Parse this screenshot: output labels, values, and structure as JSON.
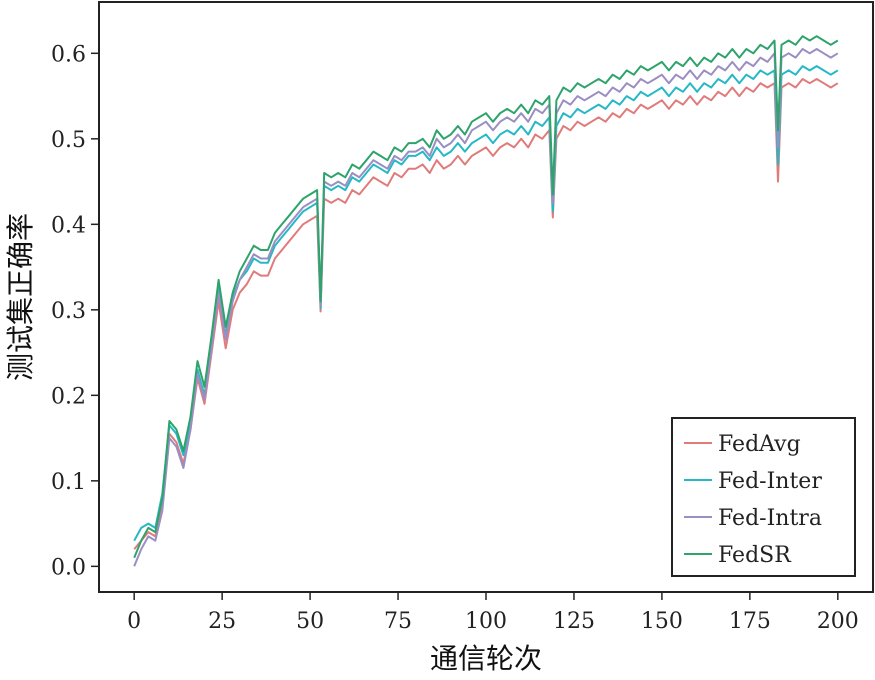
{
  "chart_data": {
    "type": "line",
    "title": "",
    "xlabel": "通信轮次",
    "ylabel": "测试集正确率",
    "xlim": [
      -10,
      210
    ],
    "ylim": [
      -0.03,
      0.66
    ],
    "xticks": [
      0,
      25,
      50,
      75,
      100,
      125,
      150,
      175,
      200
    ],
    "yticks": [
      0.0,
      0.1,
      0.2,
      0.3,
      0.4,
      0.5,
      0.6
    ],
    "xtick_labels": [
      "0",
      "25",
      "50",
      "75",
      "100",
      "125",
      "150",
      "175",
      "200"
    ],
    "ytick_labels": [
      "0.0",
      "0.1",
      "0.2",
      "0.3",
      "0.4",
      "0.5",
      "0.6"
    ],
    "grid": false,
    "legend": {
      "position": "bottom-right",
      "entries": [
        "FedAvg",
        "Fed-Inter",
        "Fed-Intra",
        "FedSR"
      ]
    },
    "x": [
      0,
      2,
      4,
      6,
      8,
      10,
      12,
      14,
      16,
      18,
      20,
      22,
      24,
      26,
      28,
      30,
      32,
      34,
      36,
      38,
      40,
      42,
      44,
      46,
      48,
      50,
      52,
      53,
      54,
      56,
      58,
      60,
      62,
      64,
      66,
      68,
      70,
      72,
      74,
      76,
      78,
      80,
      82,
      84,
      86,
      88,
      90,
      92,
      94,
      96,
      98,
      100,
      102,
      104,
      106,
      108,
      110,
      112,
      114,
      116,
      118,
      119,
      120,
      122,
      124,
      126,
      128,
      130,
      132,
      134,
      136,
      138,
      140,
      142,
      144,
      146,
      148,
      150,
      152,
      154,
      156,
      158,
      160,
      162,
      164,
      166,
      168,
      170,
      172,
      174,
      176,
      178,
      180,
      182,
      183,
      184,
      186,
      188,
      190,
      192,
      194,
      196,
      198,
      200
    ],
    "series": [
      {
        "name": "FedAvg",
        "color": "#e07b7b",
        "values": [
          0.02,
          0.03,
          0.04,
          0.035,
          0.075,
          0.155,
          0.145,
          0.12,
          0.16,
          0.22,
          0.19,
          0.25,
          0.31,
          0.255,
          0.3,
          0.32,
          0.33,
          0.345,
          0.34,
          0.34,
          0.36,
          0.37,
          0.38,
          0.39,
          0.4,
          0.405,
          0.41,
          0.298,
          0.43,
          0.425,
          0.43,
          0.425,
          0.44,
          0.435,
          0.445,
          0.455,
          0.45,
          0.445,
          0.46,
          0.455,
          0.465,
          0.465,
          0.47,
          0.46,
          0.475,
          0.465,
          0.47,
          0.48,
          0.47,
          0.48,
          0.485,
          0.49,
          0.48,
          0.49,
          0.495,
          0.49,
          0.5,
          0.49,
          0.505,
          0.5,
          0.51,
          0.408,
          0.5,
          0.515,
          0.51,
          0.52,
          0.515,
          0.52,
          0.525,
          0.52,
          0.53,
          0.525,
          0.535,
          0.53,
          0.54,
          0.535,
          0.54,
          0.545,
          0.535,
          0.545,
          0.54,
          0.55,
          0.54,
          0.55,
          0.545,
          0.555,
          0.55,
          0.56,
          0.55,
          0.56,
          0.555,
          0.565,
          0.56,
          0.565,
          0.45,
          0.56,
          0.565,
          0.56,
          0.57,
          0.565,
          0.57,
          0.565,
          0.56,
          0.565
        ]
      },
      {
        "name": "Fed-Inter",
        "color": "#26b8c6",
        "values": [
          0.03,
          0.045,
          0.05,
          0.045,
          0.085,
          0.165,
          0.155,
          0.13,
          0.17,
          0.23,
          0.2,
          0.26,
          0.325,
          0.27,
          0.315,
          0.335,
          0.345,
          0.36,
          0.355,
          0.355,
          0.375,
          0.385,
          0.395,
          0.405,
          0.415,
          0.42,
          0.425,
          0.302,
          0.445,
          0.44,
          0.445,
          0.44,
          0.455,
          0.45,
          0.46,
          0.47,
          0.465,
          0.46,
          0.475,
          0.47,
          0.48,
          0.48,
          0.485,
          0.475,
          0.49,
          0.48,
          0.485,
          0.495,
          0.485,
          0.495,
          0.5,
          0.505,
          0.495,
          0.505,
          0.51,
          0.505,
          0.515,
          0.505,
          0.52,
          0.515,
          0.525,
          0.415,
          0.515,
          0.53,
          0.525,
          0.535,
          0.53,
          0.535,
          0.54,
          0.535,
          0.545,
          0.54,
          0.55,
          0.545,
          0.555,
          0.55,
          0.555,
          0.56,
          0.55,
          0.56,
          0.555,
          0.565,
          0.555,
          0.565,
          0.56,
          0.57,
          0.565,
          0.575,
          0.565,
          0.575,
          0.57,
          0.58,
          0.575,
          0.58,
          0.47,
          0.575,
          0.58,
          0.575,
          0.585,
          0.58,
          0.585,
          0.58,
          0.575,
          0.58
        ]
      },
      {
        "name": "Fed-Intra",
        "color": "#9a8ec2",
        "values": [
          0.0,
          0.02,
          0.035,
          0.03,
          0.065,
          0.15,
          0.14,
          0.115,
          0.16,
          0.225,
          0.195,
          0.255,
          0.32,
          0.265,
          0.31,
          0.335,
          0.35,
          0.365,
          0.36,
          0.36,
          0.38,
          0.39,
          0.4,
          0.41,
          0.42,
          0.425,
          0.43,
          0.305,
          0.45,
          0.445,
          0.45,
          0.445,
          0.46,
          0.455,
          0.465,
          0.475,
          0.47,
          0.465,
          0.48,
          0.475,
          0.485,
          0.485,
          0.49,
          0.48,
          0.5,
          0.49,
          0.495,
          0.505,
          0.495,
          0.51,
          0.515,
          0.52,
          0.51,
          0.52,
          0.525,
          0.52,
          0.53,
          0.52,
          0.535,
          0.53,
          0.54,
          0.425,
          0.53,
          0.545,
          0.54,
          0.55,
          0.545,
          0.55,
          0.555,
          0.55,
          0.56,
          0.555,
          0.565,
          0.56,
          0.57,
          0.565,
          0.57,
          0.575,
          0.565,
          0.575,
          0.57,
          0.58,
          0.57,
          0.58,
          0.575,
          0.585,
          0.58,
          0.59,
          0.58,
          0.59,
          0.585,
          0.595,
          0.59,
          0.6,
          0.49,
          0.595,
          0.6,
          0.595,
          0.605,
          0.6,
          0.605,
          0.6,
          0.595,
          0.6
        ]
      },
      {
        "name": "FedSR",
        "color": "#2ea36b",
        "values": [
          0.01,
          0.03,
          0.045,
          0.04,
          0.08,
          0.17,
          0.16,
          0.135,
          0.175,
          0.24,
          0.21,
          0.27,
          0.335,
          0.28,
          0.32,
          0.345,
          0.36,
          0.375,
          0.37,
          0.37,
          0.39,
          0.4,
          0.41,
          0.42,
          0.43,
          0.435,
          0.44,
          0.31,
          0.46,
          0.455,
          0.46,
          0.455,
          0.47,
          0.465,
          0.475,
          0.485,
          0.48,
          0.475,
          0.49,
          0.485,
          0.495,
          0.495,
          0.5,
          0.49,
          0.51,
          0.5,
          0.505,
          0.515,
          0.505,
          0.52,
          0.525,
          0.53,
          0.52,
          0.53,
          0.535,
          0.53,
          0.54,
          0.53,
          0.545,
          0.54,
          0.55,
          0.435,
          0.545,
          0.56,
          0.555,
          0.565,
          0.56,
          0.565,
          0.57,
          0.565,
          0.575,
          0.57,
          0.58,
          0.575,
          0.585,
          0.58,
          0.585,
          0.59,
          0.58,
          0.59,
          0.585,
          0.595,
          0.585,
          0.595,
          0.59,
          0.6,
          0.595,
          0.605,
          0.595,
          0.605,
          0.6,
          0.61,
          0.605,
          0.615,
          0.51,
          0.61,
          0.615,
          0.61,
          0.62,
          0.615,
          0.62,
          0.615,
          0.61,
          0.615
        ]
      }
    ]
  }
}
